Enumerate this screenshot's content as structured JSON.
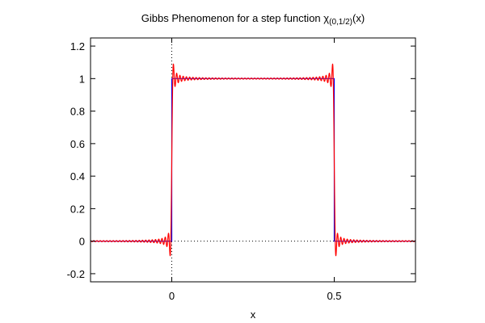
{
  "chart_data": {
    "type": "line",
    "title": "Gibbs Phenomenon for a step function χ",
    "title_subscript": "(0,1/2)",
    "title_suffix": "(x)",
    "xlabel": "x",
    "ylabel": "",
    "xlim": [
      -0.25,
      0.75
    ],
    "ylim": [
      -0.25,
      1.25
    ],
    "x_ticks": [
      {
        "value": 0,
        "label": "0"
      },
      {
        "value": 0.5,
        "label": "0.5"
      }
    ],
    "y_ticks": [
      {
        "value": -0.2,
        "label": "-0.2"
      },
      {
        "value": 0,
        "label": "0"
      },
      {
        "value": 0.2,
        "label": "0.2"
      },
      {
        "value": 0.4,
        "label": "0.4"
      },
      {
        "value": 0.6,
        "label": "0.6"
      },
      {
        "value": 0.8,
        "label": "0.8"
      },
      {
        "value": 1,
        "label": "1"
      },
      {
        "value": 1.2,
        "label": "1.2"
      }
    ],
    "zero_axes_dotted": true,
    "grid": false,
    "series": [
      {
        "kind": "step_function",
        "color": "#0000ff",
        "x": [
          -0.25,
          0,
          0,
          0.5,
          0.5,
          0.75
        ],
        "y": [
          0,
          0,
          1,
          1,
          0,
          0
        ]
      },
      {
        "kind": "fourier_partial_sum",
        "color": "#ff0000",
        "harmonics": 100,
        "function_interval": [
          0,
          0.5
        ],
        "period": 1
      }
    ]
  }
}
